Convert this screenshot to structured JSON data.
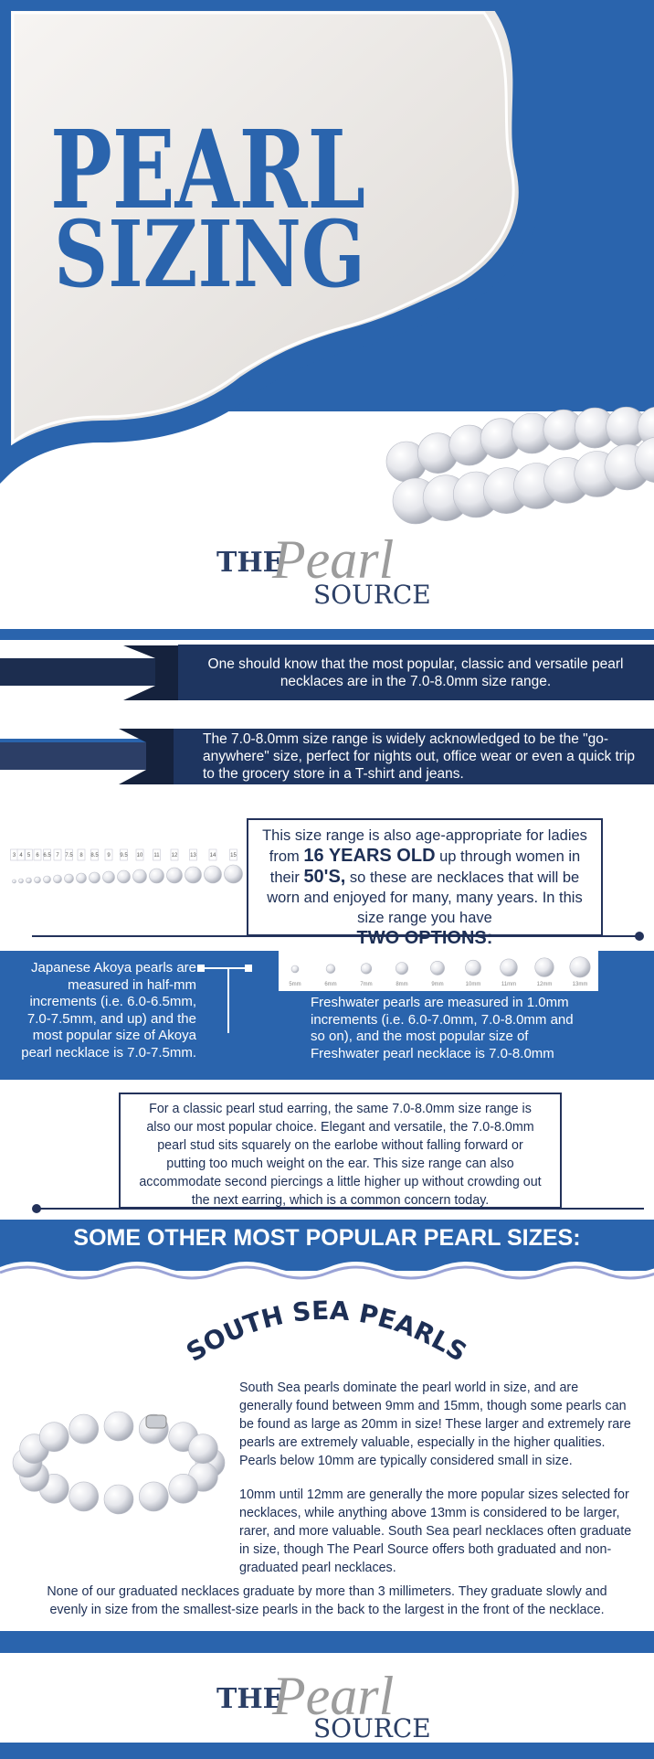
{
  "header": {
    "title_lines": [
      "PEARL",
      "SIZING"
    ]
  },
  "logo": {
    "the": "THE",
    "pearl": "Pearl",
    "source": "SOURCE"
  },
  "bands": [
    "One should know that the most popular, classic and versatile pearl necklaces are in the 7.0-8.0mm size range.",
    "The 7.0-8.0mm size range is widely acknowledged to be the \"go-anywhere\" size, perfect for nights out, office wear or even a quick trip to the grocery store in a T-shirt and jeans."
  ],
  "ruler_labels": [
    "3",
    "4",
    "5",
    "6",
    "6.5",
    "7",
    "7.5",
    "8",
    "8.5",
    "9",
    "9.5",
    "10",
    "11",
    "12",
    "13",
    "14",
    "15"
  ],
  "age_box": {
    "segments": [
      "This size range is also age-appropriate for ladies from ",
      "16 YEARS OLD",
      " up through women in their ",
      "50'S,",
      " so these are necklaces that will be worn and enjoyed for many, many years. In this size range you have ",
      "TWO OPTIONS:"
    ]
  },
  "akoya_text": "Japanese Akoya pearls are measured in half-mm increments (i.e. 6.0-6.5mm, 7.0-7.5mm, and up) and the most popular size of Akoya pearl necklace is 7.0-7.5mm.",
  "pearl_sizes": [
    "5mm",
    "6mm",
    "7mm",
    "8mm",
    "9mm",
    "10mm",
    "11mm",
    "12mm",
    "13mm"
  ],
  "freshwater_text": "Freshwater pearls are measured in 1.0mm increments (i.e. 6.0-7.0mm, 7.0-8.0mm and so on), and the most popular size of Freshwater pearl necklace is 7.0-8.0mm",
  "stud_text": "For a classic pearl stud earring, the same 7.0-8.0mm size range is also our most popular choice. Elegant and versatile, the 7.0-8.0mm pearl stud sits squarely on the earlobe without falling forward or putting too much weight on the ear. This size range can also accommodate second piercings a little higher up without crowding out the next earring, which is a common concern today.",
  "banner": "SOME OTHER MOST POPULAR PEARL SIZES:",
  "south_sea": {
    "heading": "SOUTH SEA PEARLS",
    "paragraphs": [
      "South Sea pearls dominate the pearl world in size, and are generally found between 9mm and 15mm, though some pearls can be found as large as 20mm in size! These larger and extremely rare pearls are extremely valuable, especially in the higher qualities. Pearls below 10mm are typically considered small in size.",
      "10mm until 12mm are generally the more popular sizes selected for necklaces, while anything above 13mm is considered to be larger, rarer, and more valuable. South Sea pearl necklaces often graduate in size, though The Pearl Source offers both graduated and non-graduated pearl necklaces."
    ],
    "note": "None of our graduated necklaces graduate by more than 3 millimeters. They graduate slowly and evenly in size from the smallest-size pearls in the back to the largest in the front of the necklace."
  },
  "footer_logo": {
    "the": "THE",
    "pearl": "Pearl",
    "source": "SOURCE"
  }
}
